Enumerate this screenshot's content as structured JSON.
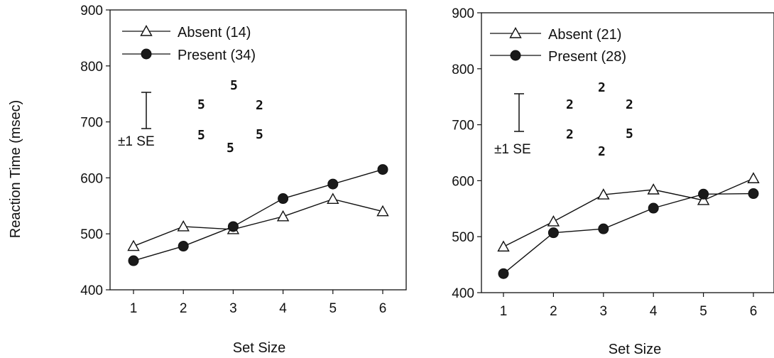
{
  "ylabel": "Reaction Time (msec)",
  "chart_data": [
    {
      "type": "line",
      "xlabel": "Set Size",
      "categories": [
        1,
        2,
        3,
        4,
        5,
        6
      ],
      "ylim": [
        400,
        900
      ],
      "yticks": [
        400,
        500,
        600,
        700,
        800,
        900
      ],
      "legend_position": "top-left",
      "series": [
        {
          "name": "Absent (14)",
          "marker": "open-triangle",
          "values": [
            478,
            513,
            508,
            531,
            562,
            540
          ]
        },
        {
          "name": "Present (34)",
          "marker": "filled-circle",
          "values": [
            452,
            478,
            513,
            563,
            589,
            615
          ]
        }
      ],
      "se_label": "±1 SE",
      "stimulus_glyphs": [
        "5",
        "5",
        "5",
        "2",
        "5",
        "5"
      ]
    },
    {
      "type": "line",
      "xlabel": "Set Size",
      "categories": [
        1,
        2,
        3,
        4,
        5,
        6
      ],
      "ylim": [
        400,
        900
      ],
      "yticks": [
        400,
        500,
        600,
        700,
        800,
        900
      ],
      "legend_position": "top-left",
      "series": [
        {
          "name": "Absent (21)",
          "marker": "open-triangle",
          "values": [
            482,
            527,
            575,
            584,
            565,
            604
          ]
        },
        {
          "name": "Present (28)",
          "marker": "filled-circle",
          "values": [
            434,
            507,
            514,
            551,
            576,
            577
          ]
        }
      ],
      "se_label": "±1 SE",
      "stimulus_glyphs": [
        "2",
        "2",
        "2",
        "2",
        "5",
        "2"
      ]
    }
  ]
}
